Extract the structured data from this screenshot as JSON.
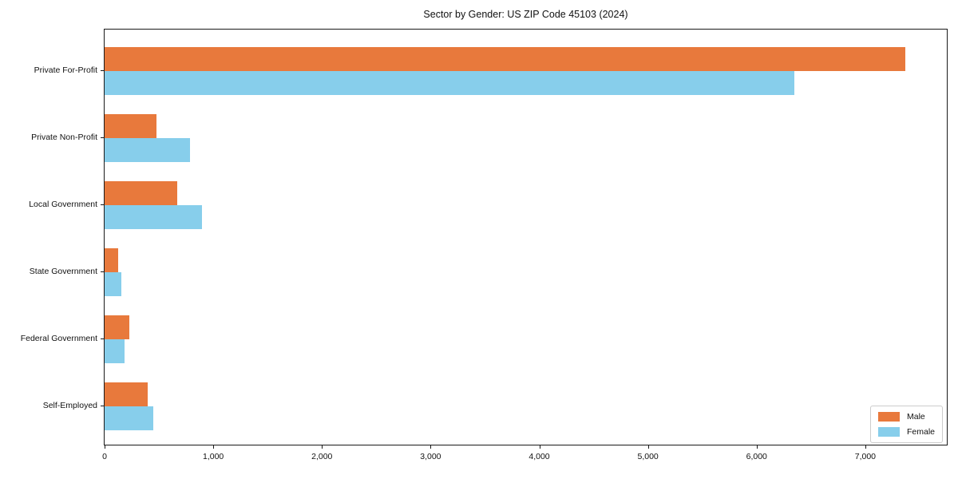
{
  "title": "Sector by Gender: US ZIP Code 45103 (2024)",
  "chart_data": {
    "type": "bar",
    "orientation": "horizontal",
    "title": "Sector by Gender: US ZIP Code 45103 (2024)",
    "xlabel": "",
    "ylabel": "",
    "categories": [
      "Private For-Profit",
      "Private Non-Profit",
      "Local Government",
      "State Government",
      "Federal Government",
      "Self-Employed"
    ],
    "series": [
      {
        "name": "Male",
        "color": "#E8793C",
        "values": [
          7370,
          480,
          670,
          125,
          225,
          400
        ]
      },
      {
        "name": "Female",
        "color": "#87CEEB",
        "values": [
          6350,
          785,
          895,
          155,
          180,
          450
        ]
      }
    ],
    "xlim": [
      0,
      7750
    ],
    "xticks": [
      0,
      1000,
      2000,
      3000,
      4000,
      5000,
      6000,
      7000
    ],
    "xtick_labels": [
      "0",
      "1,000",
      "2,000",
      "3,000",
      "4,000",
      "5,000",
      "6,000",
      "7,000"
    ],
    "grid": false,
    "legend_position": "lower right"
  },
  "colors": {
    "male": "#E8793C",
    "female": "#87CEEB",
    "axis": "#1a1a1a",
    "legend_border": "#cccccc",
    "background": "#ffffff"
  }
}
